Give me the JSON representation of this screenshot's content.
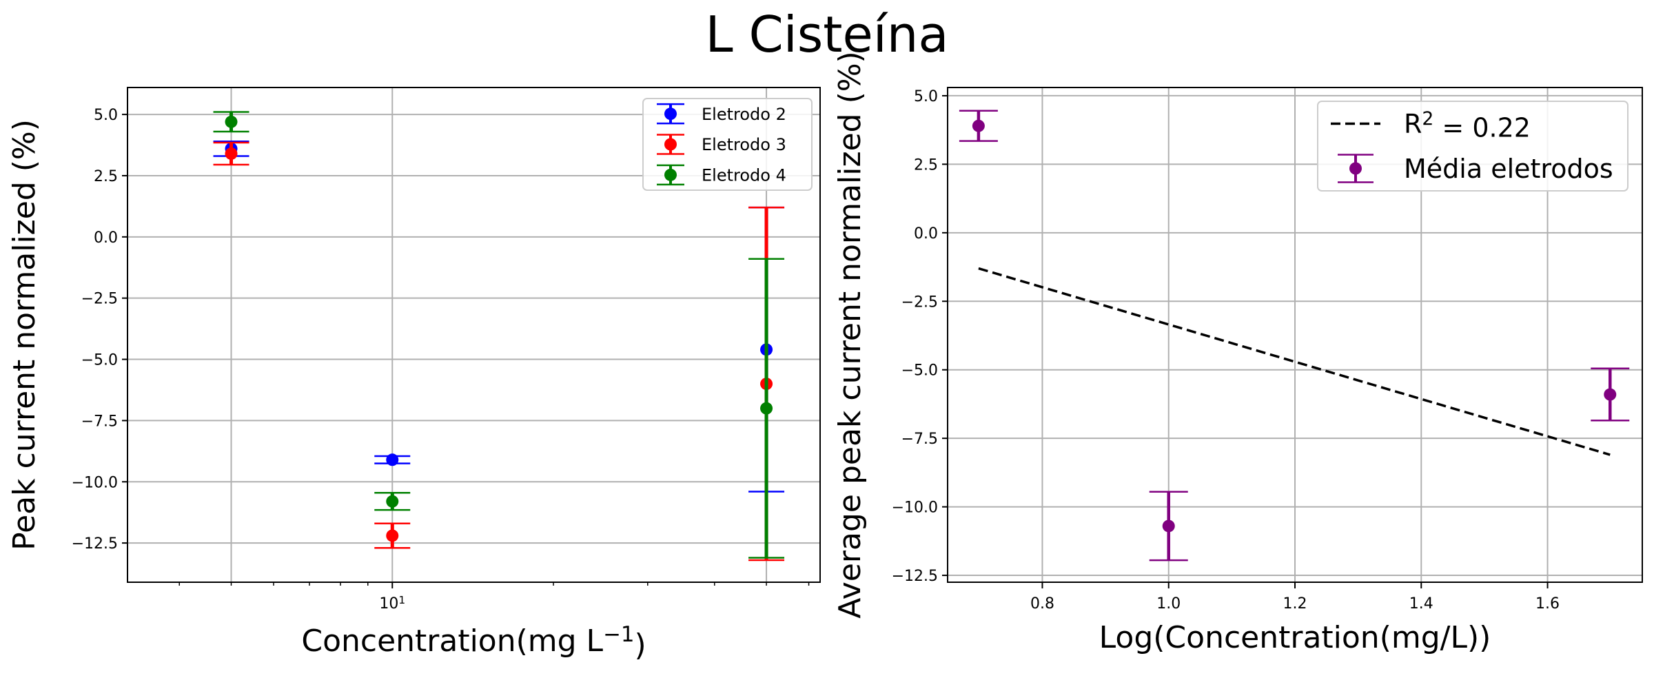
{
  "suptitle": "L Cisteína",
  "chart_data": [
    {
      "type": "scatter",
      "xscale": "log",
      "xlim": [
        3.2,
        63
      ],
      "ylim": [
        -14.1,
        6.1
      ],
      "xlabel": "Concentration(mg L⁻¹)",
      "ylabel": "Peak current normalized (%)",
      "x_ticks": [
        10
      ],
      "x_tick_labels": [
        "10¹"
      ],
      "y_ticks": [
        5.0,
        2.5,
        0.0,
        -2.5,
        -5.0,
        -7.5,
        -10.0,
        -12.5
      ],
      "y_tick_labels": [
        "5.0",
        "2.5",
        "0.0",
        "−2.5",
        "−5.0",
        "−7.5",
        "−10.0",
        "−12.5"
      ],
      "grid": true,
      "legend": "top-right",
      "series": [
        {
          "name": "Eletrodo 2",
          "color": "#0000ff",
          "x": [
            5,
            10,
            50
          ],
          "y": [
            3.6,
            -9.1,
            -4.6
          ],
          "err": [
            0.3,
            0.15,
            5.8
          ]
        },
        {
          "name": "Eletrodo 3",
          "color": "#ff0000",
          "x": [
            5,
            10,
            50
          ],
          "y": [
            3.4,
            -12.2,
            -6.0
          ],
          "err": [
            0.45,
            0.5,
            7.2
          ]
        },
        {
          "name": "Eletrodo 4",
          "color": "#008000",
          "x": [
            5,
            10,
            50
          ],
          "y": [
            4.7,
            -10.8,
            -7.0
          ],
          "err": [
            0.4,
            0.35,
            6.1
          ]
        }
      ]
    },
    {
      "type": "scatter",
      "xscale": "linear",
      "xlim": [
        0.65,
        1.75
      ],
      "ylim": [
        -12.75,
        5.3
      ],
      "xlabel": "Log(Concentration(mg/L))",
      "ylabel": "Average peak current normalized (%)",
      "x_ticks": [
        0.8,
        1.0,
        1.2,
        1.4,
        1.6
      ],
      "x_tick_labels": [
        "0.8",
        "1.0",
        "1.2",
        "1.4",
        "1.6"
      ],
      "y_ticks": [
        5.0,
        2.5,
        0.0,
        -2.5,
        -5.0,
        -7.5,
        -10.0,
        -12.5
      ],
      "y_tick_labels": [
        "5.0",
        "2.5",
        "0.0",
        "−2.5",
        "−5.0",
        "−7.5",
        "−10.0",
        "−12.5"
      ],
      "grid": true,
      "legend": "top-right",
      "series": [
        {
          "name": "Média eletrodos",
          "color": "#800080",
          "x": [
            0.699,
            1.0,
            1.699
          ],
          "y": [
            3.9,
            -10.7,
            -5.9
          ],
          "err": [
            0.55,
            1.25,
            0.95
          ]
        }
      ],
      "fit_line": {
        "name": "R² = 0.22",
        "color": "#000000",
        "x": [
          0.699,
          1.699
        ],
        "y": [
          -1.3,
          -8.1
        ]
      }
    }
  ]
}
